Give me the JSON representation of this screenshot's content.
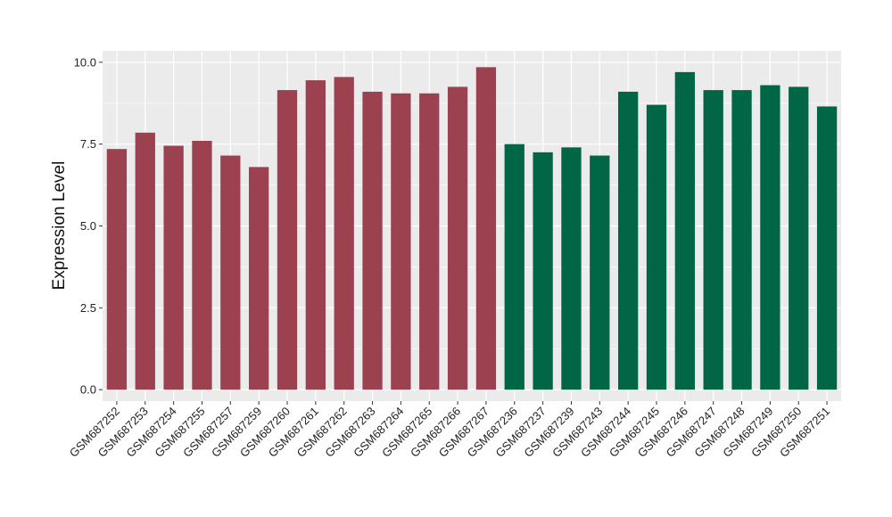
{
  "chart_data": {
    "type": "bar",
    "title": "",
    "xlabel": "",
    "ylabel": "Expression Level",
    "ylim": [
      -0.35,
      10.35
    ],
    "yticks": [
      0.0,
      2.5,
      5.0,
      7.5,
      10.0
    ],
    "ytick_labels": [
      "0.0",
      "2.5",
      "5.0",
      "7.5",
      "10.0"
    ],
    "grid": true,
    "legend": "none",
    "categories": [
      "GSM687252",
      "GSM687253",
      "GSM687254",
      "GSM687255",
      "GSM687257",
      "GSM687259",
      "GSM687260",
      "GSM687261",
      "GSM687262",
      "GSM687263",
      "GSM687264",
      "GSM687265",
      "GSM687266",
      "GSM687267",
      "GSM687236",
      "GSM687237",
      "GSM687239",
      "GSM687243",
      "GSM687244",
      "GSM687245",
      "GSM687246",
      "GSM687247",
      "GSM687248",
      "GSM687249",
      "GSM687250",
      "GSM687251"
    ],
    "values": [
      7.35,
      7.85,
      7.45,
      7.6,
      7.15,
      6.8,
      9.15,
      9.45,
      9.55,
      9.1,
      9.05,
      9.05,
      9.25,
      9.85,
      7.5,
      7.25,
      7.4,
      7.15,
      9.1,
      8.7,
      9.7,
      9.15,
      9.15,
      9.3,
      9.25,
      8.65
    ],
    "bar_colors": [
      "#9b4150",
      "#9b4150",
      "#9b4150",
      "#9b4150",
      "#9b4150",
      "#9b4150",
      "#9b4150",
      "#9b4150",
      "#9b4150",
      "#9b4150",
      "#9b4150",
      "#9b4150",
      "#9b4150",
      "#9b4150",
      "#006645",
      "#006645",
      "#006645",
      "#006645",
      "#006645",
      "#006645",
      "#006645",
      "#006645",
      "#006645",
      "#006645",
      "#006645",
      "#006645"
    ],
    "panel_background": "#ebebeb",
    "grid_color": "#ffffff"
  }
}
